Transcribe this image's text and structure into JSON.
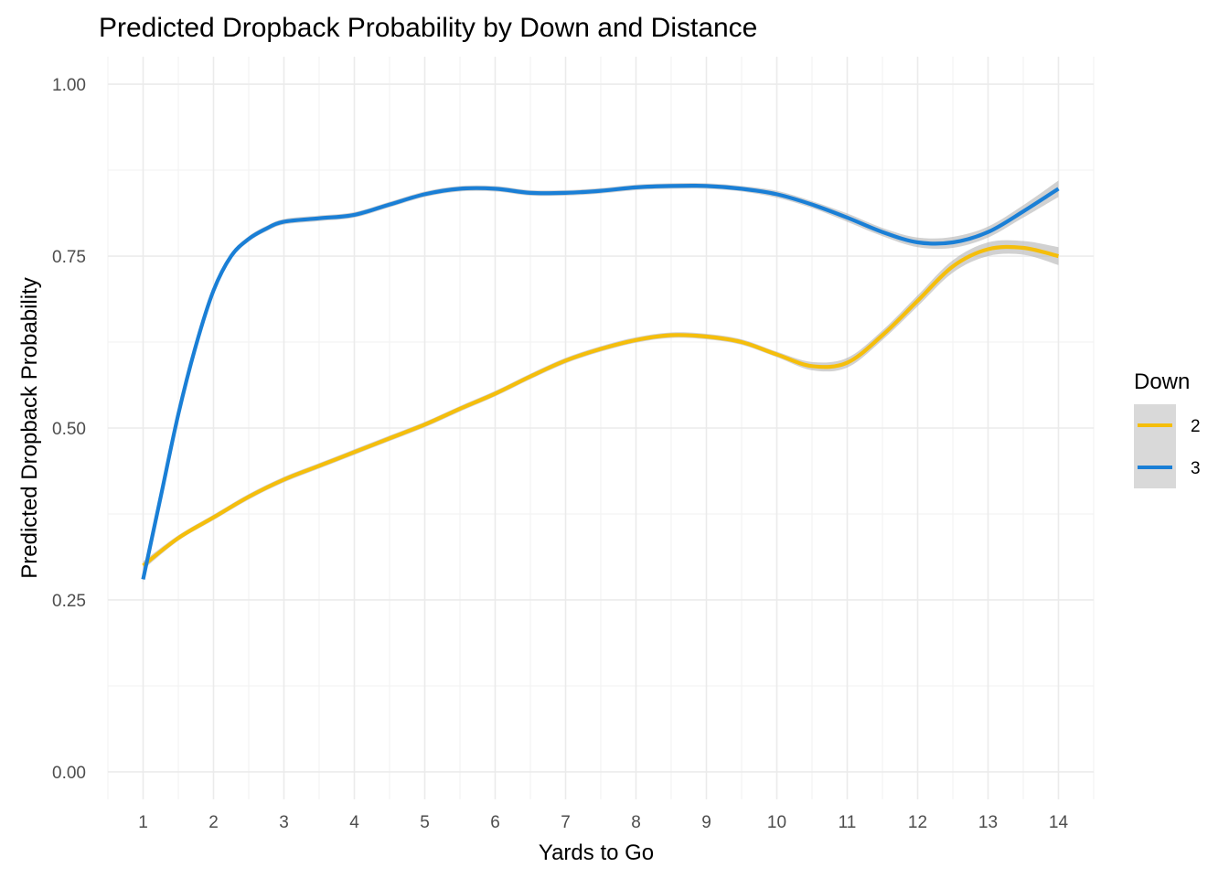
{
  "chart_data": {
    "type": "line",
    "title": "Predicted Dropback Probability by Down and Distance",
    "xlabel": "Yards to Go",
    "ylabel": "Predicted Dropback Probability",
    "xlim": [
      0.5,
      14.5
    ],
    "ylim": [
      -0.04,
      1.04
    ],
    "x_ticks": [
      1,
      2,
      3,
      4,
      5,
      6,
      7,
      8,
      9,
      10,
      11,
      12,
      13,
      14
    ],
    "y_ticks": [
      0.0,
      0.25,
      0.5,
      0.75,
      1.0
    ],
    "y_tick_labels": [
      "0.00",
      "0.25",
      "0.50",
      "0.75",
      "1.00"
    ],
    "grid": true,
    "legend": {
      "title": "Down",
      "position": "right"
    },
    "series": [
      {
        "name": "2",
        "color": "#F5BE0B",
        "x": [
          1,
          1.5,
          2,
          2.5,
          3,
          3.5,
          4,
          4.5,
          5,
          5.5,
          6,
          6.5,
          7,
          7.5,
          8,
          8.5,
          9,
          9.5,
          10,
          10.5,
          11,
          11.5,
          12,
          12.5,
          13,
          13.5,
          14
        ],
        "y": [
          0.3,
          0.34,
          0.37,
          0.4,
          0.425,
          0.445,
          0.465,
          0.485,
          0.505,
          0.528,
          0.55,
          0.575,
          0.598,
          0.615,
          0.628,
          0.635,
          0.633,
          0.625,
          0.607,
          0.59,
          0.595,
          0.635,
          0.685,
          0.735,
          0.76,
          0.762,
          0.75
        ],
        "ci_halfwidth": [
          0.006,
          0.004,
          0.004,
          0.004,
          0.004,
          0.004,
          0.004,
          0.004,
          0.004,
          0.004,
          0.004,
          0.004,
          0.004,
          0.004,
          0.004,
          0.004,
          0.004,
          0.004,
          0.004,
          0.006,
          0.007,
          0.007,
          0.008,
          0.009,
          0.01,
          0.01,
          0.013
        ]
      },
      {
        "name": "3",
        "color": "#1A7FD6",
        "x": [
          1,
          1.25,
          1.5,
          1.75,
          2,
          2.25,
          2.5,
          2.75,
          3,
          3.5,
          4,
          4.5,
          5,
          5.5,
          6,
          6.5,
          7,
          7.5,
          8,
          8.5,
          9,
          9.5,
          10,
          10.5,
          11,
          11.5,
          12,
          12.5,
          13,
          13.5,
          14
        ],
        "y": [
          0.28,
          0.4,
          0.52,
          0.62,
          0.7,
          0.75,
          0.775,
          0.79,
          0.8,
          0.805,
          0.81,
          0.825,
          0.84,
          0.848,
          0.848,
          0.842,
          0.842,
          0.845,
          0.85,
          0.852,
          0.852,
          0.848,
          0.84,
          0.825,
          0.806,
          0.785,
          0.77,
          0.77,
          0.785,
          0.815,
          0.848
        ],
        "ci_halfwidth": [
          0.005,
          0.004,
          0.004,
          0.004,
          0.004,
          0.004,
          0.004,
          0.004,
          0.004,
          0.004,
          0.004,
          0.004,
          0.004,
          0.004,
          0.004,
          0.004,
          0.004,
          0.004,
          0.004,
          0.004,
          0.004,
          0.004,
          0.005,
          0.005,
          0.006,
          0.006,
          0.007,
          0.008,
          0.008,
          0.009,
          0.012
        ]
      }
    ]
  }
}
